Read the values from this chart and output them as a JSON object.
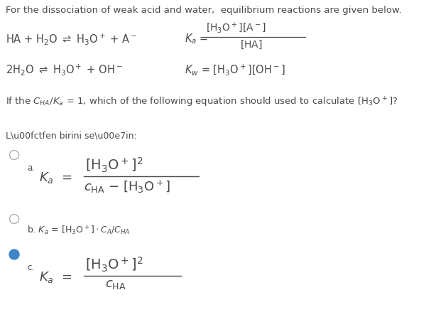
{
  "bg_color": "#ffffff",
  "text_color": "#4a4a4a",
  "radio_selected_color": "#3d85c8",
  "radio_unselected_color": "#b0b0b0",
  "title": "For the dissociation of weak acid and water,  equilibrium reactions are given below.",
  "rx1_left": "HA + H$_2$O $\\rightleftharpoons$ H$_3$O$^+$ + A$^-$      $K_a$ =",
  "rx1_num": "$[\\mathrm{H_3O^+}][\\mathrm{A^-}]$",
  "rx1_den": "$[\\mathrm{HA}]$",
  "rx2": "2H$_2$O $\\rightleftharpoons$ H$_3$O$^+$ + OH$^-$      $K_w$ = $[\\mathrm{H_3O^+}][\\mathrm{OH^-}]$",
  "question": "If the $C_{HA}$/$K_a$ = 1, which of the following equation should used to calculate [$\\mathrm{H_3O^+}$]?",
  "lutfen": "L\\u00fctfen birini se\\u00e7in:",
  "opt_b": "b. $K_a$ = $[\\mathrm{H_3O^+}]\\cdot C_A/C_{HA}$"
}
